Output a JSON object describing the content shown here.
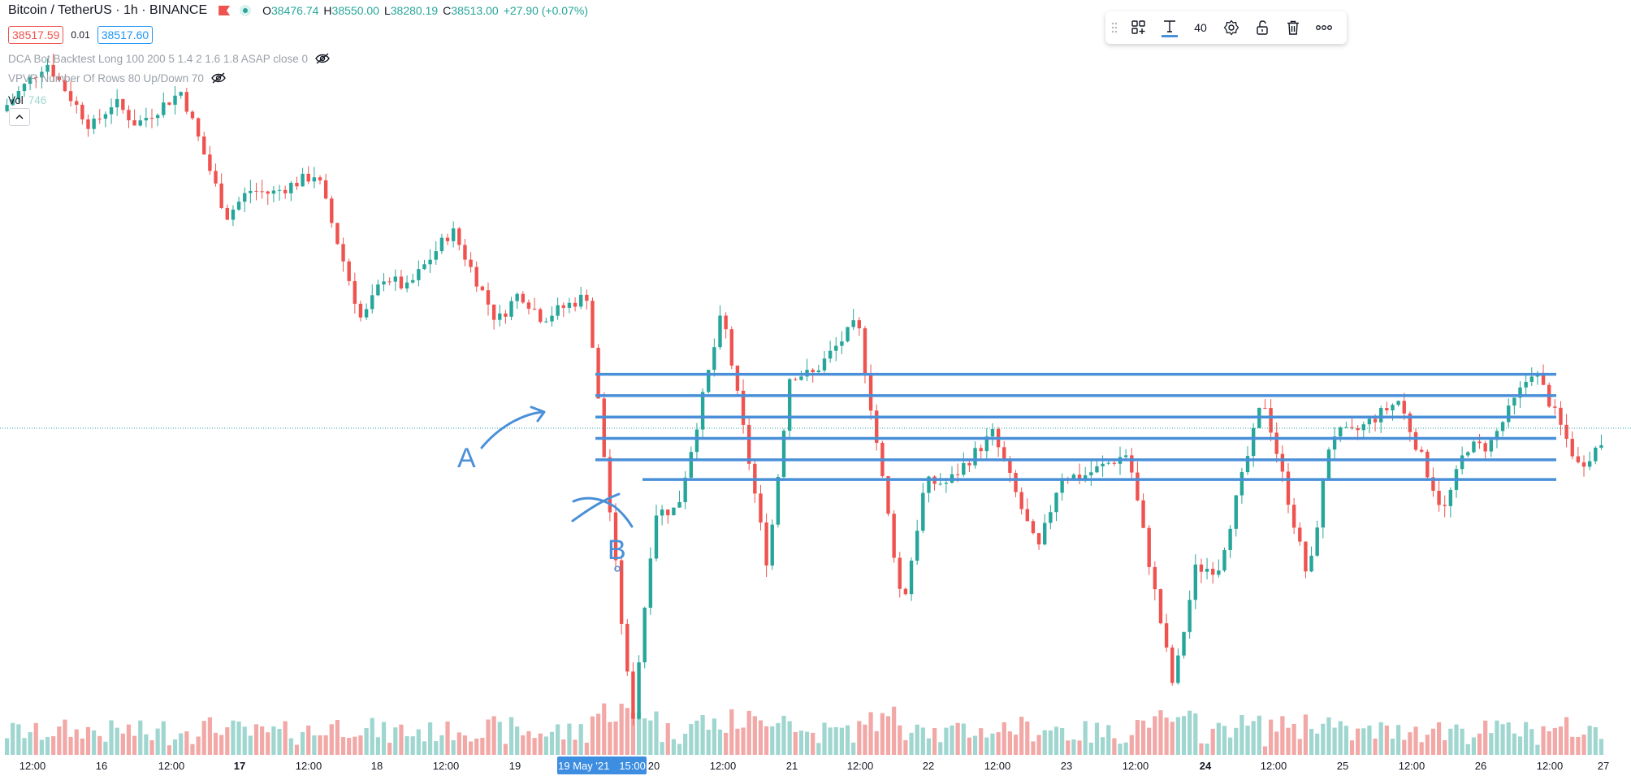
{
  "symbol": {
    "title": "Bitcoin / TetherUS · 1h · BINANCE",
    "open_label": "O",
    "open": "38476.74",
    "high_label": "H",
    "high": "38550.00",
    "low_label": "L",
    "low": "38280.19",
    "close_label": "C",
    "close": "38513.00",
    "change": "+27.90 (+0.07%)",
    "bid": "38517.59",
    "spread": "0.01",
    "ask": "38517.60"
  },
  "studies": [
    {
      "label": "DCA Bot Backtest Long 100 200 5 1.4 2 1.6 1.8 ASAP close 0"
    },
    {
      "label": "VPVR Number Of Rows 80 Up/Down 70"
    }
  ],
  "volume": {
    "label": "Vol",
    "value": "746"
  },
  "toolbar": {
    "font_size": "40"
  },
  "annotations": {
    "a": "A",
    "b": "B"
  },
  "time_axis": {
    "ticks": [
      "12:00",
      "16",
      "12:00",
      "17",
      "12:00",
      "18",
      "12:00",
      "19",
      "19 May '21",
      "15:00",
      "20",
      "12:00",
      "21",
      "12:00",
      "22",
      "12:00",
      "23",
      "12:00",
      "24",
      "12:00",
      "25",
      "12:00",
      "26",
      "12:00",
      "27"
    ],
    "bold": [
      false,
      false,
      false,
      true,
      false,
      false,
      false,
      false,
      false,
      false,
      false,
      false,
      false,
      false,
      false,
      false,
      false,
      false,
      true,
      false,
      false,
      false,
      false,
      false,
      false
    ]
  },
  "colors": {
    "up": "#26a69a",
    "down": "#ef5350",
    "vol_up": "#9fd6d0",
    "vol_down": "#f1a8a6",
    "drawing": "#4a90d9",
    "marker": "#3d8de0"
  },
  "chart_data": {
    "type": "candlestick",
    "title": "Bitcoin / TetherUS · 1h · BINANCE",
    "x_range": [
      "May 15 2021 12:00",
      "May 27 2021 00:00"
    ],
    "candles_approx": [
      {
        "time": "May 15",
        "o": 48600,
        "h": 50100,
        "l": 48100,
        "c": 48900
      },
      {
        "time": "May 16",
        "o": 48200,
        "h": 49200,
        "l": 45400,
        "c": 46200
      },
      {
        "time": "May 17",
        "o": 46100,
        "h": 46700,
        "l": 42200,
        "c": 43600
      },
      {
        "time": "May 18",
        "o": 43200,
        "h": 45000,
        "l": 42200,
        "c": 43100
      },
      {
        "time": "May 19",
        "o": 42300,
        "h": 43000,
        "l": 30000,
        "c": 36400
      },
      {
        "time": "May 20",
        "o": 36500,
        "h": 42500,
        "l": 34800,
        "c": 40600
      },
      {
        "time": "May 21",
        "o": 40600,
        "h": 42200,
        "l": 33500,
        "c": 37300
      },
      {
        "time": "May 22",
        "o": 37300,
        "h": 38800,
        "l": 35200,
        "c": 37500
      },
      {
        "time": "May 23",
        "o": 37500,
        "h": 38200,
        "l": 31100,
        "c": 34700
      },
      {
        "time": "May 24",
        "o": 34700,
        "h": 39900,
        "l": 34300,
        "c": 38800
      },
      {
        "time": "May 25",
        "o": 38800,
        "h": 39800,
        "l": 36400,
        "c": 38400
      },
      {
        "time": "May 26",
        "o": 38400,
        "h": 40800,
        "l": 37800,
        "c": 38513
      }
    ],
    "horizontal_levels": [
      40600,
      39950,
      39300,
      38650,
      38000,
      37400
    ],
    "ylim": [
      29000,
      50500
    ]
  }
}
